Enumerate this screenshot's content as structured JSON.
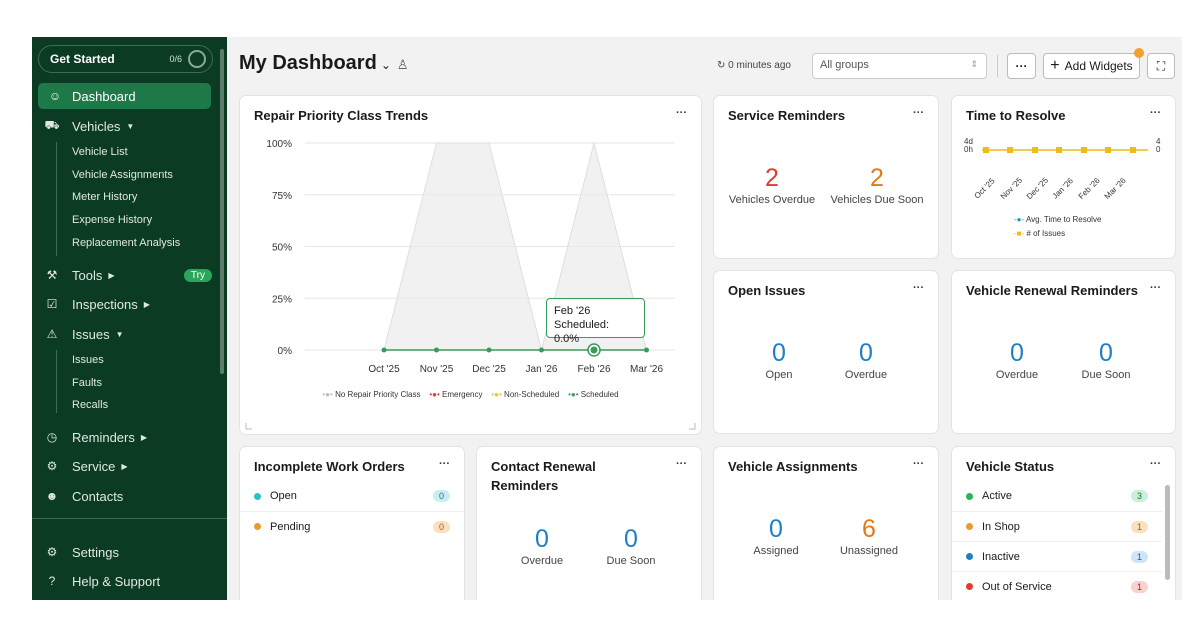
{
  "sidebar": {
    "get_started": {
      "label": "Get Started",
      "progress": "0/6"
    },
    "items": [
      {
        "label": "Dashboard",
        "icon": "dashboard-icon"
      },
      {
        "label": "Vehicles",
        "icon": "car-icon",
        "subitems": [
          "Vehicle List",
          "Vehicle Assignments",
          "Meter History",
          "Expense History",
          "Replacement Analysis"
        ]
      },
      {
        "label": "Tools",
        "icon": "tools-icon",
        "badge": "Try"
      },
      {
        "label": "Inspections",
        "icon": "clipboard-icon"
      },
      {
        "label": "Issues",
        "icon": "warning-icon",
        "subitems": [
          "Issues",
          "Faults",
          "Recalls"
        ]
      },
      {
        "label": "Reminders",
        "icon": "alarm-icon"
      },
      {
        "label": "Service",
        "icon": "wrench-icon"
      },
      {
        "label": "Contacts",
        "icon": "people-icon"
      }
    ],
    "bottom": [
      {
        "label": "Settings",
        "icon": "gear-icon"
      },
      {
        "label": "Help & Support",
        "icon": "help-icon"
      }
    ]
  },
  "header": {
    "title": "My Dashboard",
    "updated": "0 minutes ago",
    "groups_select": "All groups",
    "more_label": "···",
    "add_widgets_label": "Add Widgets"
  },
  "widgets": {
    "repair_priority": {
      "title": "Repair Priority Class Trends",
      "tooltip": {
        "line1": "Feb '26",
        "line2": "Scheduled: 0.0%"
      },
      "legend": [
        "No Repair Priority Class",
        "Emergency",
        "Non-Scheduled",
        "Scheduled"
      ]
    },
    "service_reminders": {
      "title": "Service Reminders",
      "metrics": [
        {
          "value": "2",
          "label": "Vehicles Overdue"
        },
        {
          "value": "2",
          "label": "Vehicles Due Soon"
        }
      ]
    },
    "time_to_resolve": {
      "title": "Time to Resolve",
      "axis_left_top": "4d",
      "axis_left_bottom": "0h",
      "axis_right_top": "4",
      "axis_right_bottom": "0",
      "months": [
        "Oct '25",
        "Nov '25",
        "Dec '25",
        "Jan '26",
        "Feb '26",
        "Mar '26"
      ],
      "legend": [
        "Avg. Time to Resolve",
        "# of Issues"
      ]
    },
    "open_issues": {
      "title": "Open Issues",
      "metrics": [
        {
          "value": "0",
          "label": "Open"
        },
        {
          "value": "0",
          "label": "Overdue"
        }
      ]
    },
    "vehicle_renewal": {
      "title": "Vehicle Renewal Reminders",
      "metrics": [
        {
          "value": "0",
          "label": "Overdue"
        },
        {
          "value": "0",
          "label": "Due Soon"
        }
      ]
    },
    "incomplete_wo": {
      "title": "Incomplete Work Orders",
      "rows": [
        {
          "label": "Open",
          "count": "0",
          "color": "#29c0c8"
        },
        {
          "label": "Pending",
          "count": "0",
          "color": "#e99a2c"
        }
      ]
    },
    "contact_renewal": {
      "title": "Contact Renewal Reminders",
      "metrics": [
        {
          "value": "0",
          "label": "Overdue"
        },
        {
          "value": "0",
          "label": "Due Soon"
        }
      ]
    },
    "vehicle_assignments": {
      "title": "Vehicle Assignments",
      "metrics": [
        {
          "value": "0",
          "label": "Assigned"
        },
        {
          "value": "6",
          "label": "Unassigned"
        }
      ]
    },
    "vehicle_status": {
      "title": "Vehicle Status",
      "rows": [
        {
          "label": "Active",
          "count": "3",
          "color": "#2bb35a"
        },
        {
          "label": "In Shop",
          "count": "1",
          "color": "#e99a2c"
        },
        {
          "label": "Inactive",
          "count": "1",
          "color": "#1f7fc6"
        },
        {
          "label": "Out of Service",
          "count": "1",
          "color": "#e03b2f"
        }
      ]
    }
  },
  "chart_data": {
    "type": "area",
    "title": "Repair Priority Class Trends",
    "categories": [
      "Oct '25",
      "Nov '25",
      "Dec '25",
      "Jan '26",
      "Feb '26",
      "Mar '26"
    ],
    "yticks": [
      "100%",
      "75%",
      "50%",
      "25%",
      "0%"
    ],
    "ylim": [
      0,
      100
    ],
    "series": [
      {
        "name": "No Repair Priority Class",
        "color": "#cccccc",
        "values": [
          0,
          100,
          100,
          0,
          100,
          0
        ]
      },
      {
        "name": "Emergency",
        "color": "#e03b2f",
        "values": [
          0,
          0,
          0,
          0,
          0,
          0
        ]
      },
      {
        "name": "Non-Scheduled",
        "color": "#f0c030",
        "values": [
          0,
          0,
          0,
          0,
          0,
          0
        ]
      },
      {
        "name": "Scheduled",
        "color": "#3a9a5a",
        "values": [
          0,
          0,
          0,
          0,
          0,
          0
        ]
      }
    ],
    "legend_position": "bottom"
  }
}
